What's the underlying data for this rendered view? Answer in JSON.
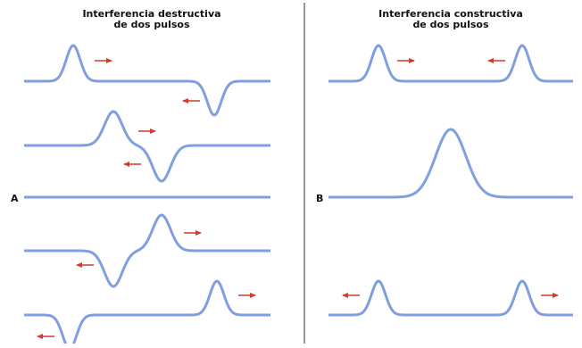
{
  "colors": {
    "wave": "#7f9fe0",
    "arrow": "#d23c2c",
    "divider": "#333333",
    "text": "#111111"
  },
  "left_panel": {
    "title_line1": "Interferencia destructiva",
    "title_line2": "de dos pulsos",
    "label": "A"
  },
  "right_panel": {
    "title_line1": "Interferencia constructiva",
    "title_line2": "de dos pulsos",
    "label": "B"
  }
}
